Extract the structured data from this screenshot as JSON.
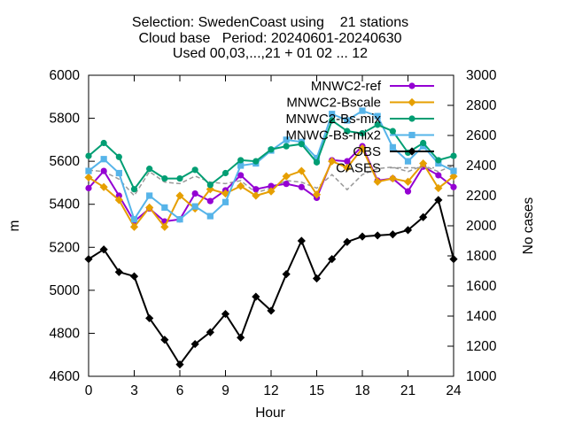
{
  "title_lines": [
    "Selection: SwedenCoast using    21 stations",
    "Cloud base   Period: 20240601-20240630",
    "Used 00,03,...,21 + 01 02 ... 12"
  ],
  "chart_data": {
    "type": "line",
    "xlabel": "Hour",
    "ylabel": "m",
    "y2label": "No cases",
    "xlim": [
      0,
      24
    ],
    "ylim": [
      4600,
      6000
    ],
    "y2lim": [
      1000,
      3000
    ],
    "xticks": [
      0,
      3,
      6,
      9,
      12,
      15,
      18,
      21,
      24
    ],
    "yticks": [
      4600,
      4800,
      5000,
      5200,
      5400,
      5600,
      5800,
      6000
    ],
    "y2ticks": [
      1000,
      1200,
      1400,
      1600,
      1800,
      2000,
      2200,
      2400,
      2600,
      2800,
      3000
    ],
    "grid": false,
    "legend_position": "top-right",
    "x": [
      0,
      1,
      2,
      3,
      4,
      5,
      6,
      7,
      8,
      9,
      10,
      11,
      12,
      13,
      14,
      15,
      16,
      17,
      18,
      19,
      20,
      21,
      22,
      23,
      24
    ],
    "series": [
      {
        "name": "MNWC2-ref",
        "color": "#9400d3",
        "marker": "circle",
        "values": [
          5475,
          5555,
          5440,
          5320,
          5380,
          5320,
          5330,
          5450,
          5415,
          5465,
          5535,
          5470,
          5485,
          5495,
          5480,
          5430,
          5605,
          5600,
          5670,
          5510,
          5520,
          5460,
          5575,
          5535,
          5480
        ]
      },
      {
        "name": "MNWC2-Bscale",
        "color": "#e69f00",
        "marker": "diamond",
        "values": [
          5525,
          5480,
          5420,
          5295,
          5385,
          5295,
          5440,
          5380,
          5470,
          5450,
          5485,
          5440,
          5460,
          5530,
          5555,
          5445,
          5600,
          5570,
          5660,
          5505,
          5520,
          5505,
          5590,
          5475,
          5530
        ]
      },
      {
        "name": "MNWC2-Bs-mix",
        "color": "#009e73",
        "marker": "circle",
        "values": [
          5625,
          5685,
          5620,
          5470,
          5565,
          5520,
          5520,
          5560,
          5490,
          5545,
          5605,
          5600,
          5655,
          5670,
          5680,
          5595,
          5790,
          5740,
          5730,
          5770,
          5740,
          5640,
          5685,
          5605,
          5625
        ]
      },
      {
        "name": "MNWC-Bs-mix2",
        "color": "#56b4e9",
        "marker": "square",
        "values": [
          5555,
          5610,
          5545,
          5330,
          5440,
          5385,
          5330,
          5390,
          5345,
          5410,
          5580,
          5590,
          5650,
          5700,
          5690,
          5615,
          5820,
          5790,
          5835,
          5810,
          5665,
          5600,
          5670,
          5590,
          5555
        ]
      },
      {
        "name": "OBS",
        "color": "#000000",
        "marker": "diamond",
        "values": [
          5145,
          5190,
          5085,
          5065,
          4870,
          4770,
          4655,
          4750,
          4805,
          4890,
          4780,
          4970,
          4905,
          5075,
          5230,
          5055,
          5145,
          5225,
          5250,
          5255,
          5260,
          5280,
          5340,
          5420,
          5145
        ]
      },
      {
        "name": "CASES",
        "color": "#999999",
        "dashed": true,
        "axis": "y2",
        "values": [
          2370,
          2360,
          2310,
          2200,
          2360,
          2290,
          2280,
          2330,
          2290,
          2280,
          2300,
          2220,
          2250,
          2300,
          2290,
          2250,
          2340,
          2240,
          2340,
          2380,
          2390,
          2360,
          2400,
          2360,
          2400
        ]
      }
    ]
  }
}
